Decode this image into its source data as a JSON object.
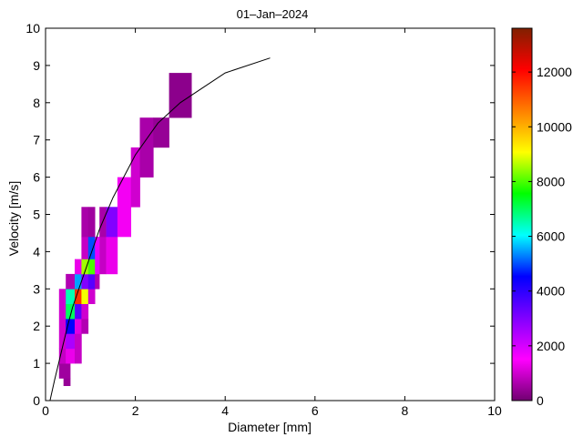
{
  "chart_data": {
    "type": "heatmap",
    "title": "01–Jan–2024",
    "xlabel": "Diameter [mm]",
    "ylabel": "Velocity [m/s]",
    "xlim": [
      0,
      10
    ],
    "ylim": [
      0,
      10
    ],
    "xticks": [
      0,
      2,
      4,
      6,
      8,
      10
    ],
    "yticks": [
      0,
      1,
      2,
      3,
      4,
      5,
      6,
      7,
      8,
      9,
      10
    ],
    "grid": false,
    "colorbar": {
      "min": 0,
      "max": 13600,
      "ticks": [
        0,
        2000,
        4000,
        6000,
        8000,
        10000,
        12000
      ],
      "colormap": [
        "#700070",
        "#ff00ff",
        "#8000ff",
        "#0000ff",
        "#00ffff",
        "#00ff00",
        "#ffff00",
        "#ff8000",
        "#ff0000",
        "#802000"
      ]
    },
    "cells": [
      {
        "d0": 0.4,
        "d1": 0.55,
        "v0": 0.4,
        "v1": 0.6,
        "count": 400
      },
      {
        "d0": 0.3,
        "d1": 0.55,
        "v0": 0.6,
        "v1": 1.0,
        "count": 500
      },
      {
        "d0": 0.3,
        "d1": 0.45,
        "v0": 1.0,
        "v1": 1.4,
        "count": 900
      },
      {
        "d0": 0.45,
        "d1": 0.65,
        "v0": 1.0,
        "v1": 1.4,
        "count": 1300
      },
      {
        "d0": 0.3,
        "d1": 0.45,
        "v0": 1.4,
        "v1": 3.0,
        "count": 1000
      },
      {
        "d0": 0.45,
        "d1": 0.65,
        "v0": 1.4,
        "v1": 1.8,
        "count": 2500
      },
      {
        "d0": 0.45,
        "d1": 0.65,
        "v0": 1.8,
        "v1": 2.2,
        "count": 4500
      },
      {
        "d0": 0.45,
        "d1": 0.65,
        "v0": 2.2,
        "v1": 2.6,
        "count": 7000
      },
      {
        "d0": 0.45,
        "d1": 0.65,
        "v0": 2.6,
        "v1": 3.0,
        "count": 6500
      },
      {
        "d0": 0.45,
        "d1": 0.65,
        "v0": 3.0,
        "v1": 3.4,
        "count": 700
      },
      {
        "d0": 0.65,
        "d1": 0.8,
        "v0": 1.0,
        "v1": 1.8,
        "count": 900
      },
      {
        "d0": 0.65,
        "d1": 0.8,
        "v0": 1.8,
        "v1": 2.2,
        "count": 1200
      },
      {
        "d0": 0.65,
        "d1": 0.8,
        "v0": 2.2,
        "v1": 2.6,
        "count": 3500
      },
      {
        "d0": 0.65,
        "d1": 0.8,
        "v0": 2.6,
        "v1": 3.0,
        "count": 11500
      },
      {
        "d0": 0.65,
        "d1": 0.8,
        "v0": 3.0,
        "v1": 3.4,
        "count": 5500
      },
      {
        "d0": 0.65,
        "d1": 0.8,
        "v0": 3.4,
        "v1": 3.8,
        "count": 1300
      },
      {
        "d0": 0.8,
        "d1": 0.95,
        "v0": 1.8,
        "v1": 2.2,
        "count": 700
      },
      {
        "d0": 0.8,
        "d1": 0.95,
        "v0": 2.2,
        "v1": 2.6,
        "count": 1000
      },
      {
        "d0": 0.8,
        "d1": 0.95,
        "v0": 2.6,
        "v1": 3.0,
        "count": 9000
      },
      {
        "d0": 0.8,
        "d1": 0.95,
        "v0": 3.0,
        "v1": 3.4,
        "count": 3000
      },
      {
        "d0": 0.8,
        "d1": 0.95,
        "v0": 3.4,
        "v1": 3.8,
        "count": 8500
      },
      {
        "d0": 0.8,
        "d1": 0.95,
        "v0": 3.8,
        "v1": 4.4,
        "count": 900
      },
      {
        "d0": 0.8,
        "d1": 0.95,
        "v0": 4.4,
        "v1": 5.2,
        "count": 600
      },
      {
        "d0": 0.95,
        "d1": 1.1,
        "v0": 2.6,
        "v1": 3.0,
        "count": 1000
      },
      {
        "d0": 0.95,
        "d1": 1.1,
        "v0": 3.0,
        "v1": 3.4,
        "count": 3500
      },
      {
        "d0": 0.95,
        "d1": 1.1,
        "v0": 3.4,
        "v1": 3.8,
        "count": 8000
      },
      {
        "d0": 0.95,
        "d1": 1.1,
        "v0": 3.8,
        "v1": 4.4,
        "count": 5000
      },
      {
        "d0": 0.95,
        "d1": 1.1,
        "v0": 4.4,
        "v1": 5.2,
        "count": 500
      },
      {
        "d0": 1.1,
        "d1": 1.2,
        "v0": 3.0,
        "v1": 3.4,
        "count": 700
      },
      {
        "d0": 1.1,
        "d1": 1.2,
        "v0": 3.4,
        "v1": 4.4,
        "count": 1800
      },
      {
        "d0": 1.2,
        "d1": 1.35,
        "v0": 3.4,
        "v1": 4.4,
        "count": 900
      },
      {
        "d0": 1.2,
        "d1": 1.35,
        "v0": 4.4,
        "v1": 5.2,
        "count": 600
      },
      {
        "d0": 1.35,
        "d1": 1.6,
        "v0": 3.4,
        "v1": 4.4,
        "count": 1300
      },
      {
        "d0": 1.35,
        "d1": 1.6,
        "v0": 4.4,
        "v1": 5.2,
        "count": 3000
      },
      {
        "d0": 1.6,
        "d1": 1.9,
        "v0": 4.4,
        "v1": 6.0,
        "count": 1400
      },
      {
        "d0": 1.9,
        "d1": 2.1,
        "v0": 5.2,
        "v1": 6.8,
        "count": 1000
      },
      {
        "d0": 2.1,
        "d1": 2.4,
        "v0": 6.0,
        "v1": 7.6,
        "count": 600
      },
      {
        "d0": 2.4,
        "d1": 2.75,
        "v0": 6.8,
        "v1": 7.6,
        "count": 400
      },
      {
        "d0": 2.75,
        "d1": 3.25,
        "v0": 7.6,
        "v1": 8.8,
        "count": 300
      }
    ],
    "fit_curve": {
      "x": [
        0.1,
        0.2,
        0.3,
        0.4,
        0.5,
        0.6,
        0.7,
        0.8,
        0.9,
        1.0,
        1.2,
        1.5,
        2.0,
        2.5,
        3.0,
        3.5,
        4.0,
        5.0
      ],
      "y": [
        0.0,
        0.55,
        1.05,
        1.55,
        2.05,
        2.5,
        2.85,
        3.2,
        3.55,
        3.9,
        4.6,
        5.45,
        6.6,
        7.45,
        8.0,
        8.4,
        8.8,
        9.2
      ]
    }
  }
}
